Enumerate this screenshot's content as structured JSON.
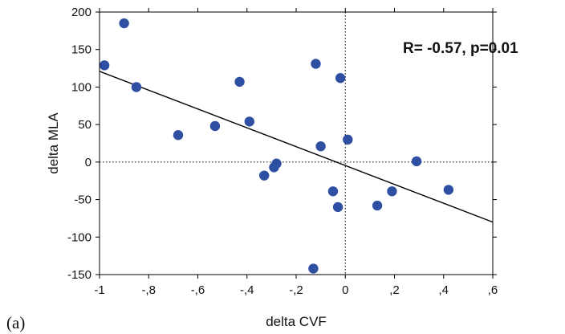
{
  "chart_data": {
    "type": "scatter",
    "panel_label": "(a)",
    "xlabel": "delta CVF",
    "ylabel": "delta MLA",
    "xlim": [
      -1,
      0.6
    ],
    "ylim": [
      -150,
      200
    ],
    "x_ticks": [
      -1,
      -0.8,
      -0.6,
      -0.4,
      -0.2,
      0,
      0.2,
      0.4,
      0.6
    ],
    "x_tick_labels": [
      "-1",
      "-,8",
      "-,6",
      "-,4",
      "-,2",
      "0",
      ",2",
      ",4",
      ",6"
    ],
    "y_ticks": [
      -150,
      -100,
      -50,
      0,
      50,
      100,
      150,
      200
    ],
    "y_tick_labels": [
      "-150",
      "-100",
      "-50",
      "0",
      "50",
      "100",
      "150",
      "200"
    ],
    "annotation": "R= -0.57, p=0.01",
    "point_color": "#2f4fa3",
    "points": [
      {
        "x": -0.98,
        "y": 129
      },
      {
        "x": -0.9,
        "y": 185
      },
      {
        "x": -0.85,
        "y": 100
      },
      {
        "x": -0.68,
        "y": 36
      },
      {
        "x": -0.53,
        "y": 48
      },
      {
        "x": -0.43,
        "y": 107
      },
      {
        "x": -0.39,
        "y": 54
      },
      {
        "x": -0.33,
        "y": -18
      },
      {
        "x": -0.29,
        "y": -7
      },
      {
        "x": -0.28,
        "y": -2
      },
      {
        "x": -0.12,
        "y": 131
      },
      {
        "x": -0.1,
        "y": 21
      },
      {
        "x": -0.13,
        "y": -142
      },
      {
        "x": -0.05,
        "y": -39
      },
      {
        "x": -0.03,
        "y": -60
      },
      {
        "x": -0.02,
        "y": 112
      },
      {
        "x": 0.01,
        "y": 30
      },
      {
        "x": 0.13,
        "y": -58
      },
      {
        "x": 0.19,
        "y": -39
      },
      {
        "x": 0.29,
        "y": 1
      },
      {
        "x": 0.42,
        "y": -37
      }
    ],
    "regression_line": {
      "x": [
        -1,
        0.6
      ],
      "y": [
        121,
        -80
      ]
    },
    "reference_lines": {
      "x": 0,
      "y": 0,
      "style": "dotted"
    },
    "grid": false,
    "legend": false
  }
}
